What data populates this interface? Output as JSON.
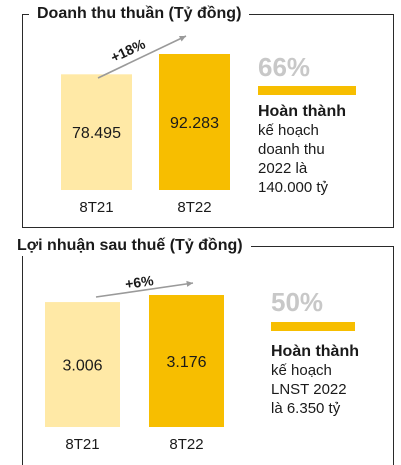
{
  "colors": {
    "bar_previous": "#ffe9a6",
    "bar_current": "#f7be00",
    "percent": "#c8c8c8",
    "border": "#2a2a2a",
    "arrow": "#9a9a9a"
  },
  "panels": [
    {
      "title": "Doanh thu thuần (Tỷ đồng)",
      "percent": "66%",
      "note_bold": "Hoàn thành",
      "note_lines": [
        "kế hoạch",
        "doanh thu",
        "2022 là",
        "140.000 tỷ"
      ]
    },
    {
      "title": "Lợi nhuận sau thuế (Tỷ đồng)",
      "percent": "50%",
      "note_bold": "Hoàn thành",
      "note_lines": [
        "kế hoạch",
        "LNST 2022",
        "là 6.350 tỷ"
      ]
    }
  ],
  "chart_data": [
    {
      "type": "bar",
      "title": "Doanh thu thuần (Tỷ đồng)",
      "categories": [
        "8T21",
        "8T22"
      ],
      "values": [
        78495,
        92283
      ],
      "value_labels": [
        "78.495",
        "92.283"
      ],
      "growth_label": "+18%"
    },
    {
      "type": "bar",
      "title": "Lợi nhuận sau thuế (Tỷ đồng)",
      "categories": [
        "8T21",
        "8T22"
      ],
      "values": [
        3006,
        3176
      ],
      "value_labels": [
        "3.006",
        "3.176"
      ],
      "growth_label": "+6%"
    }
  ]
}
